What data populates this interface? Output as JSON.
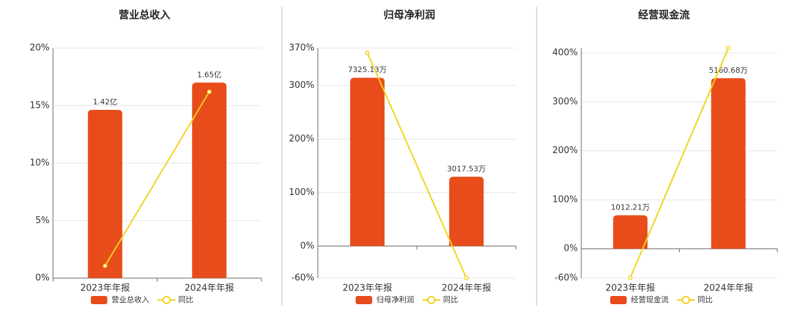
{
  "chart_data": [
    {
      "type": "bar",
      "title": "营业总收入",
      "categories": [
        "2023年年报",
        "2024年年报"
      ],
      "series": [
        {
          "name": "营业总收入",
          "type": "bar",
          "color": "#e84c1a",
          "values": [
            1.42,
            1.65
          ],
          "value_labels": [
            "1.42亿",
            "1.65亿"
          ]
        },
        {
          "name": "同比",
          "type": "line",
          "color": "#f2d21b",
          "values": [
            1.07,
            16.2
          ]
        }
      ],
      "ylim": [
        0,
        20
      ],
      "yticks": [
        {
          "value": 0,
          "label": "0%"
        },
        {
          "value": 5,
          "label": "5%"
        },
        {
          "value": 10,
          "label": "10%"
        },
        {
          "value": 15,
          "label": "15%"
        },
        {
          "value": 20,
          "label": "20%"
        }
      ],
      "grid": true
    },
    {
      "type": "bar",
      "title": "归母净利润",
      "categories": [
        "2023年年报",
        "2024年年报"
      ],
      "series": [
        {
          "name": "归母净利润",
          "type": "bar",
          "color": "#e84c1a",
          "values": [
            7325.13,
            3017.53
          ],
          "value_labels": [
            "7325.13万",
            "3017.53万"
          ]
        },
        {
          "name": "同比",
          "type": "line",
          "color": "#f2d21b",
          "values": [
            361,
            -60
          ]
        }
      ],
      "ylim": [
        -60,
        370
      ],
      "yticks": [
        {
          "value": -60,
          "label": "-60%"
        },
        {
          "value": 0,
          "label": "0%"
        },
        {
          "value": 100,
          "label": "100%"
        },
        {
          "value": 200,
          "label": "200%"
        },
        {
          "value": 300,
          "label": "300%"
        },
        {
          "value": 370,
          "label": "370%"
        }
      ],
      "grid": true
    },
    {
      "type": "bar",
      "title": "经营现金流",
      "categories": [
        "2023年年报",
        "2024年年报"
      ],
      "series": [
        {
          "name": "经营现金流",
          "type": "bar",
          "color": "#e84c1a",
          "values": [
            1012.21,
            5160.68
          ],
          "value_labels": [
            "1012.21万",
            "5160.68万"
          ]
        },
        {
          "name": "同比",
          "type": "line",
          "color": "#f2d21b",
          "values": [
            -59,
            410
          ]
        }
      ],
      "ylim": [
        -60,
        410
      ],
      "yticks": [
        {
          "value": -60,
          "label": "-60%"
        },
        {
          "value": 0,
          "label": "0%"
        },
        {
          "value": 100,
          "label": "100%"
        },
        {
          "value": 200,
          "label": "200%"
        },
        {
          "value": 300,
          "label": "300%"
        },
        {
          "value": 400,
          "label": "400%"
        }
      ],
      "grid": true
    }
  ]
}
